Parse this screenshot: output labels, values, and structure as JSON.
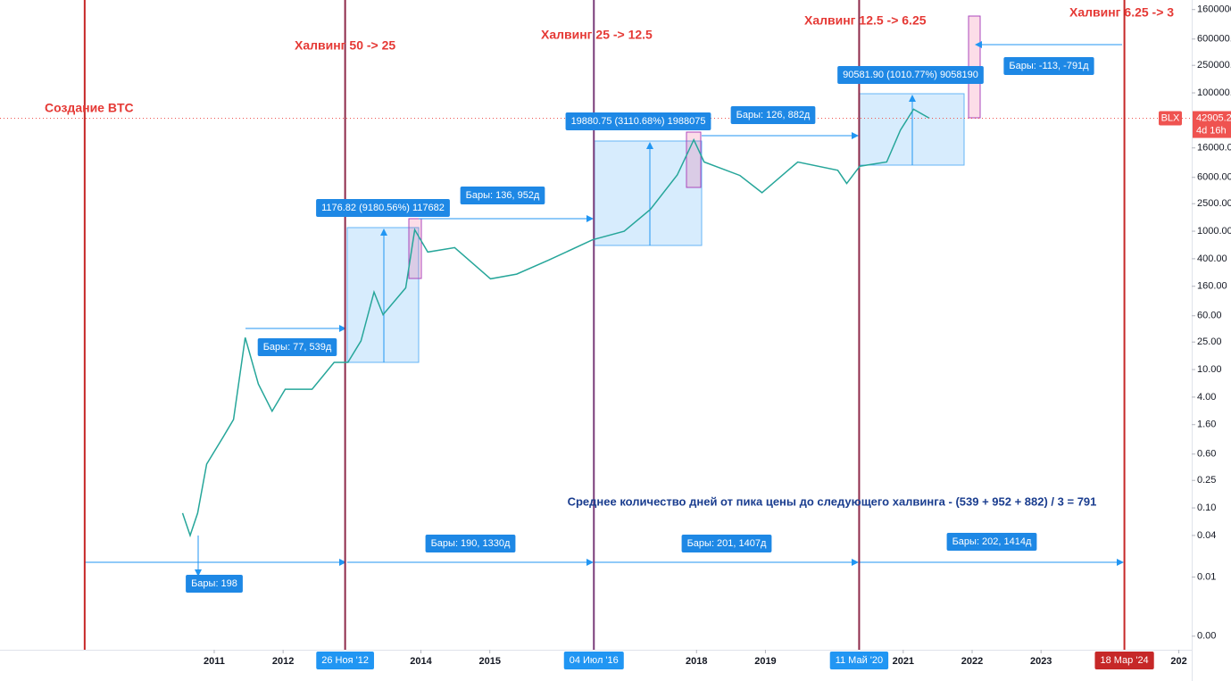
{
  "chart_data": {
    "type": "line",
    "yscale": "log",
    "xlim": [
      2007.891,
      2025.187
    ],
    "ylim": [
      0.00089,
      2200000
    ],
    "yticks": [
      1600000,
      {
        "value": 600000,
        "label": "600000.00"
      },
      {
        "value": 250000,
        "label": "250000.00"
      },
      {
        "value": 100000,
        "label": "100000.00"
      },
      {
        "value": 16000,
        "label": "16000.00"
      },
      {
        "value": 6000,
        "label": "6000.00"
      },
      {
        "value": 2500,
        "label": "2500.00"
      },
      {
        "value": 1000,
        "label": "1000.00"
      },
      {
        "value": 400,
        "label": "400.00"
      },
      {
        "value": 160,
        "label": "160.00"
      },
      {
        "value": 60,
        "label": "60.00"
      },
      {
        "value": 25,
        "label": "25.00"
      },
      {
        "value": 10,
        "label": "10.00"
      },
      {
        "value": 4,
        "label": "4.00"
      },
      {
        "value": 1.6,
        "label": "1.60"
      },
      {
        "value": 0.6,
        "label": "0.60"
      },
      0.25,
      {
        "value": 0.1,
        "label": "0.10"
      },
      0.04,
      0.01,
      {
        "value": 0.0014,
        "label": "0.00"
      }
    ],
    "xticks": [
      2011,
      2012,
      2014,
      2015,
      2018,
      2019,
      2021,
      2022,
      2023,
      {
        "value": 2025,
        "label": "202"
      }
    ],
    "grid": false,
    "series": [
      {
        "name": "BLX",
        "color": "#26a69a",
        "x": [
          2010.54,
          2010.65,
          2010.76,
          2010.89,
          2011.13,
          2011.28,
          2011.45,
          2011.64,
          2011.84,
          2012.03,
          2012.42,
          2012.74,
          2012.94,
          2013.13,
          2013.32,
          2013.45,
          2013.78,
          2013.91,
          2014.1,
          2014.49,
          2015.01,
          2015.39,
          2015.85,
          2016.49,
          2016.95,
          2017.33,
          2017.72,
          2017.96,
          2018.11,
          2018.63,
          2018.95,
          2019.47,
          2020.05,
          2020.18,
          2020.37,
          2020.76,
          2020.96,
          2021.15,
          2021.38
        ],
        "values": [
          0.084,
          0.04,
          0.084,
          0.43,
          1.06,
          1.9,
          29,
          6.2,
          2.5,
          5.2,
          5.2,
          12.7,
          12.7,
          26,
          132,
          62,
          152,
          1050,
          500,
          580,
          205,
          240,
          380,
          750,
          1000,
          2070,
          6500,
          21000,
          10000,
          6400,
          3600,
          10000,
          7600,
          4900,
          8700,
          10000,
          29000,
          58000,
          42905.2
        ]
      }
    ],
    "last_price": {
      "label": "42905.2",
      "countdown": "4d 16h"
    },
    "vlines": [
      {
        "x": 2009.12,
        "title": "Создание BTC",
        "color": "#c62828"
      },
      {
        "x": 2012.9,
        "title": "Халвинг 50 -> 25",
        "date": "26 Ноя '12",
        "color": "#8e2a4a"
      },
      {
        "x": 2016.51,
        "title": "Халвинг 25 -> 12.5",
        "date": "04 Июл '16",
        "color": "#7a3d7a"
      },
      {
        "x": 2020.36,
        "title": "Халвинг 12.5 -> 6.25",
        "date": "11 Май '20",
        "color": "#8e2a4a"
      },
      {
        "x": 2024.21,
        "title": "Халвинг 6.25 -> 3",
        "date": "18 Мар '24",
        "color": "#c62828"
      }
    ],
    "annotations": [
      "Бары: 198",
      "Бары: 190, 1330д",
      "Бары: 201, 1407д",
      "Бары: 202, 1414д",
      "Бары: 77, 539д",
      "Бары: 136, 952д",
      "Бары: 126, 882д",
      "Бары: -113, -791д",
      "1176.82 (9180.56%) 117682",
      "19880.75 (3110.68%) 1988075",
      "90581.90 (1010.77%) 9058190"
    ],
    "note": "Среднее количество дней от пика цены до следующего халвинга - (539 + 952 + 882) / 3 = 791"
  }
}
